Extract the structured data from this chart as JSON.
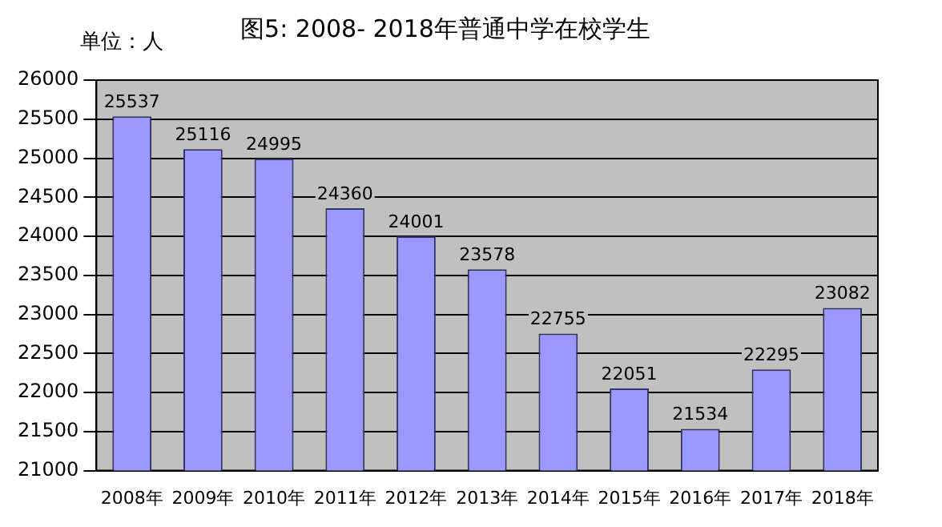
{
  "chart_data": {
    "type": "bar",
    "title": "图5: 2008- 2018年普通中学在校学生",
    "ylabel": "单位：人",
    "categories": [
      "2008年",
      "2009年",
      "2010年",
      "2011年",
      "2012年",
      "2013年",
      "2014年",
      "2015年",
      "2016年",
      "2017年",
      "2018年"
    ],
    "values": [
      25537,
      25116,
      24995,
      24360,
      24001,
      23578,
      22755,
      22051,
      21534,
      22295,
      23082
    ],
    "color": "#9999ff",
    "ylim": [
      21000,
      26000
    ],
    "yticks": [
      21000,
      21500,
      22000,
      22500,
      23000,
      23500,
      24000,
      24500,
      25000,
      25500,
      26000
    ],
    "grid": "y",
    "data_labels": true
  }
}
